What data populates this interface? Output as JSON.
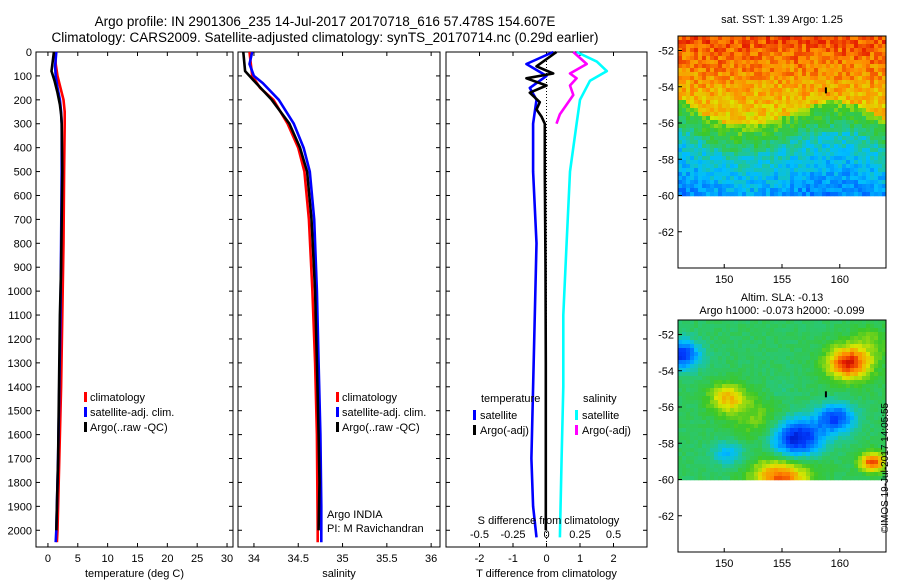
{
  "header": {
    "line1": "Argo profile: IN 2901306_235 14-Jul-2017 20170718_616 57.478S 154.607E",
    "line2": "Climatology: CARS2009. Satellite-adjusted climatology: synTS_20170714.nc (0.29d earlier)"
  },
  "sst_title": "sat. SST: 1.39 Argo: 1.25",
  "sla_title_1": "Altim. SLA: -0.13",
  "sla_title_2": "Argo h1000: -0.073 h2000: -0.099",
  "watermark": "©IMOS 19-Jul-2017 14:05:55",
  "colors": {
    "climatology": "#ff0000",
    "satellite": "#0000ff",
    "argo": "#000000",
    "sal_satellite": "#00ffff",
    "sal_argo": "#ff00ff"
  },
  "chart_data": [
    {
      "type": "line",
      "name": "temperature",
      "xlabel": "temperature (deg C)",
      "xlim": [
        -2,
        31
      ],
      "xticks": [
        0,
        5,
        10,
        15,
        20,
        25,
        30
      ],
      "ylim": [
        2070,
        0
      ],
      "yticks": [
        0,
        100,
        200,
        300,
        400,
        500,
        600,
        700,
        800,
        900,
        1000,
        1100,
        1200,
        1300,
        1400,
        1500,
        1600,
        1700,
        1800,
        1900,
        2000
      ],
      "legend": [
        "climatology",
        "satellite-adj. clim.",
        "Argo(..raw -QC)"
      ],
      "series": [
        {
          "name": "climatology",
          "color": "#ff0000",
          "points": [
            [
              1.2,
              0
            ],
            [
              1.3,
              50
            ],
            [
              1.6,
              100
            ],
            [
              2.1,
              150
            ],
            [
              2.6,
              200
            ],
            [
              2.8,
              250
            ],
            [
              2.8,
              300
            ],
            [
              2.7,
              500
            ],
            [
              2.6,
              800
            ],
            [
              2.4,
              1100
            ],
            [
              2.2,
              1400
            ],
            [
              1.9,
              1700
            ],
            [
              1.6,
              2000
            ],
            [
              1.5,
              2050
            ]
          ]
        },
        {
          "name": "satellite-adj. clim.",
          "color": "#0000ff",
          "points": [
            [
              1.4,
              0
            ],
            [
              1.2,
              60
            ],
            [
              1.3,
              100
            ],
            [
              1.6,
              150
            ],
            [
              2.0,
              200
            ],
            [
              2.2,
              250
            ],
            [
              2.3,
              300
            ],
            [
              2.3,
              500
            ],
            [
              2.2,
              800
            ],
            [
              2.1,
              1100
            ],
            [
              1.9,
              1400
            ],
            [
              1.7,
              1700
            ],
            [
              1.4,
              2000
            ],
            [
              1.3,
              2050
            ]
          ]
        },
        {
          "name": "Argo(..raw -QC)",
          "color": "#000000",
          "points": [
            [
              1.0,
              0
            ],
            [
              0.6,
              80
            ],
            [
              1.1,
              120
            ],
            [
              1.6,
              170
            ],
            [
              2.0,
              220
            ],
            [
              2.2,
              260
            ],
            [
              2.3,
              300
            ],
            [
              2.4,
              500
            ],
            [
              2.3,
              700
            ],
            [
              2.2,
              900
            ],
            [
              2.0,
              1100
            ],
            [
              1.9,
              1300
            ],
            [
              1.8,
              1500
            ],
            [
              1.7,
              1700
            ],
            [
              1.5,
              1900
            ],
            [
              1.4,
              2000
            ]
          ]
        }
      ]
    },
    {
      "type": "line",
      "name": "salinity",
      "xlabel": "salinity",
      "xlim": [
        33.82,
        36.1
      ],
      "xticks": [
        34,
        34.5,
        35,
        35.5,
        36
      ],
      "ylim": [
        2070,
        0
      ],
      "legend": [
        "climatology",
        "satellite-adj. clim.",
        "Argo(..raw -QC)"
      ],
      "annotation": [
        "Argo INDIA",
        "PI: M Ravichandran"
      ],
      "series": [
        {
          "name": "climatology",
          "color": "#ff0000",
          "points": [
            [
              33.95,
              0
            ],
            [
              33.98,
              100
            ],
            [
              34.07,
              150
            ],
            [
              34.22,
              200
            ],
            [
              34.38,
              300
            ],
            [
              34.5,
              400
            ],
            [
              34.57,
              500
            ],
            [
              34.62,
              700
            ],
            [
              34.66,
              1000
            ],
            [
              34.69,
              1300
            ],
            [
              34.71,
              1600
            ],
            [
              34.72,
              2000
            ],
            [
              34.72,
              2050
            ]
          ]
        },
        {
          "name": "satellite-adj. clim.",
          "color": "#0000ff",
          "points": [
            [
              33.98,
              0
            ],
            [
              33.95,
              50
            ],
            [
              34.0,
              100
            ],
            [
              34.1,
              130
            ],
            [
              34.28,
              200
            ],
            [
              34.45,
              300
            ],
            [
              34.56,
              400
            ],
            [
              34.63,
              500
            ],
            [
              34.68,
              700
            ],
            [
              34.71,
              1000
            ],
            [
              34.73,
              1300
            ],
            [
              34.75,
              1600
            ],
            [
              34.76,
              1900
            ],
            [
              34.76,
              2050
            ]
          ]
        },
        {
          "name": "Argo(..raw -QC)",
          "color": "#000000",
          "points": [
            [
              33.88,
              0
            ],
            [
              33.9,
              80
            ],
            [
              34.0,
              120
            ],
            [
              34.2,
              200
            ],
            [
              34.4,
              300
            ],
            [
              34.52,
              400
            ],
            [
              34.6,
              500
            ],
            [
              34.65,
              700
            ],
            [
              34.69,
              1000
            ],
            [
              34.71,
              1300
            ],
            [
              34.73,
              1600
            ],
            [
              34.74,
              1800
            ],
            [
              34.73,
              2000
            ]
          ]
        }
      ]
    },
    {
      "type": "line",
      "name": "difference",
      "xlabel": "T difference from climatology",
      "top_xlabel": "S difference from climatology",
      "xlim": [
        -3,
        3
      ],
      "xticks": [
        -2,
        -1,
        0,
        1,
        2
      ],
      "top_ticks": [
        "-0.5",
        "-0.25",
        "0",
        "0.25",
        "0.5"
      ],
      "ylim": [
        2070,
        0
      ],
      "legend_headers": [
        "temperature",
        "salinity"
      ],
      "legend": [
        {
          "group": "temperature",
          "name": "satellite",
          "color": "#0000ff"
        },
        {
          "group": "temperature",
          "name": "Argo(-adj)",
          "color": "#000000"
        },
        {
          "group": "salinity",
          "name": "satellite",
          "color": "#00ffff"
        },
        {
          "group": "salinity",
          "name": "Argo(-adj)",
          "color": "#ff00ff"
        }
      ],
      "series": [
        {
          "name": "temperature satellite",
          "color": "#0000ff",
          "points": [
            [
              0.2,
              0
            ],
            [
              -0.6,
              50
            ],
            [
              0.0,
              100
            ],
            [
              -0.5,
              150
            ],
            [
              -0.3,
              200
            ],
            [
              -0.4,
              300
            ],
            [
              -0.4,
              500
            ],
            [
              -0.3,
              800
            ],
            [
              -0.35,
              1100
            ],
            [
              -0.4,
              1400
            ],
            [
              -0.45,
              1700
            ],
            [
              -0.4,
              1900
            ],
            [
              -0.3,
              2030
            ]
          ]
        },
        {
          "name": "temperature Argo(-adj)",
          "color": "#000000",
          "points": [
            [
              0.3,
              0
            ],
            [
              -0.3,
              60
            ],
            [
              0.2,
              90
            ],
            [
              -0.6,
              110
            ],
            [
              0.0,
              140
            ],
            [
              -0.5,
              170
            ],
            [
              -0.2,
              210
            ],
            [
              -0.3,
              240
            ],
            [
              -0.15,
              270
            ],
            [
              -0.05,
              300
            ],
            [
              -0.05,
              500
            ],
            [
              -0.03,
              900
            ],
            [
              -0.02,
              1300
            ],
            [
              -0.02,
              1700
            ],
            [
              -0.02,
              2000
            ]
          ]
        },
        {
          "name": "salinity satellite",
          "color": "#00ffff",
          "points": [
            [
              0.9,
              0
            ],
            [
              1.5,
              40
            ],
            [
              1.8,
              80
            ],
            [
              1.3,
              120
            ],
            [
              1.0,
              200
            ],
            [
              0.9,
              300
            ],
            [
              0.7,
              500
            ],
            [
              0.6,
              800
            ],
            [
              0.5,
              1100
            ],
            [
              0.5,
              1400
            ],
            [
              0.45,
              1700
            ],
            [
              0.4,
              2030
            ]
          ]
        },
        {
          "name": "salinity Argo(-adj)",
          "color": "#ff00ff",
          "points": [
            [
              0.8,
              0
            ],
            [
              1.2,
              50
            ],
            [
              0.7,
              90
            ],
            [
              0.9,
              110
            ],
            [
              0.7,
              140
            ],
            [
              0.8,
              180
            ],
            [
              0.6,
              220
            ],
            [
              0.4,
              260
            ],
            [
              0.3,
              300
            ]
          ]
        }
      ]
    },
    {
      "type": "heatmap",
      "name": "sst-map",
      "xlim": [
        146,
        164
      ],
      "ylim": [
        -64,
        -51.2
      ],
      "xticks": [
        150,
        155,
        160
      ],
      "yticks": [
        -52,
        -54,
        -56,
        -58,
        -60,
        -62
      ],
      "data_extent_y": [
        -60,
        -51.2
      ]
    },
    {
      "type": "heatmap",
      "name": "sla-map",
      "xlim": [
        146,
        164
      ],
      "ylim": [
        -64,
        -51.2
      ],
      "xticks": [
        150,
        155,
        160
      ],
      "yticks": [
        -52,
        -54,
        -56,
        -58,
        -60,
        -62
      ],
      "data_extent_y": [
        -60,
        -51.2
      ]
    }
  ]
}
